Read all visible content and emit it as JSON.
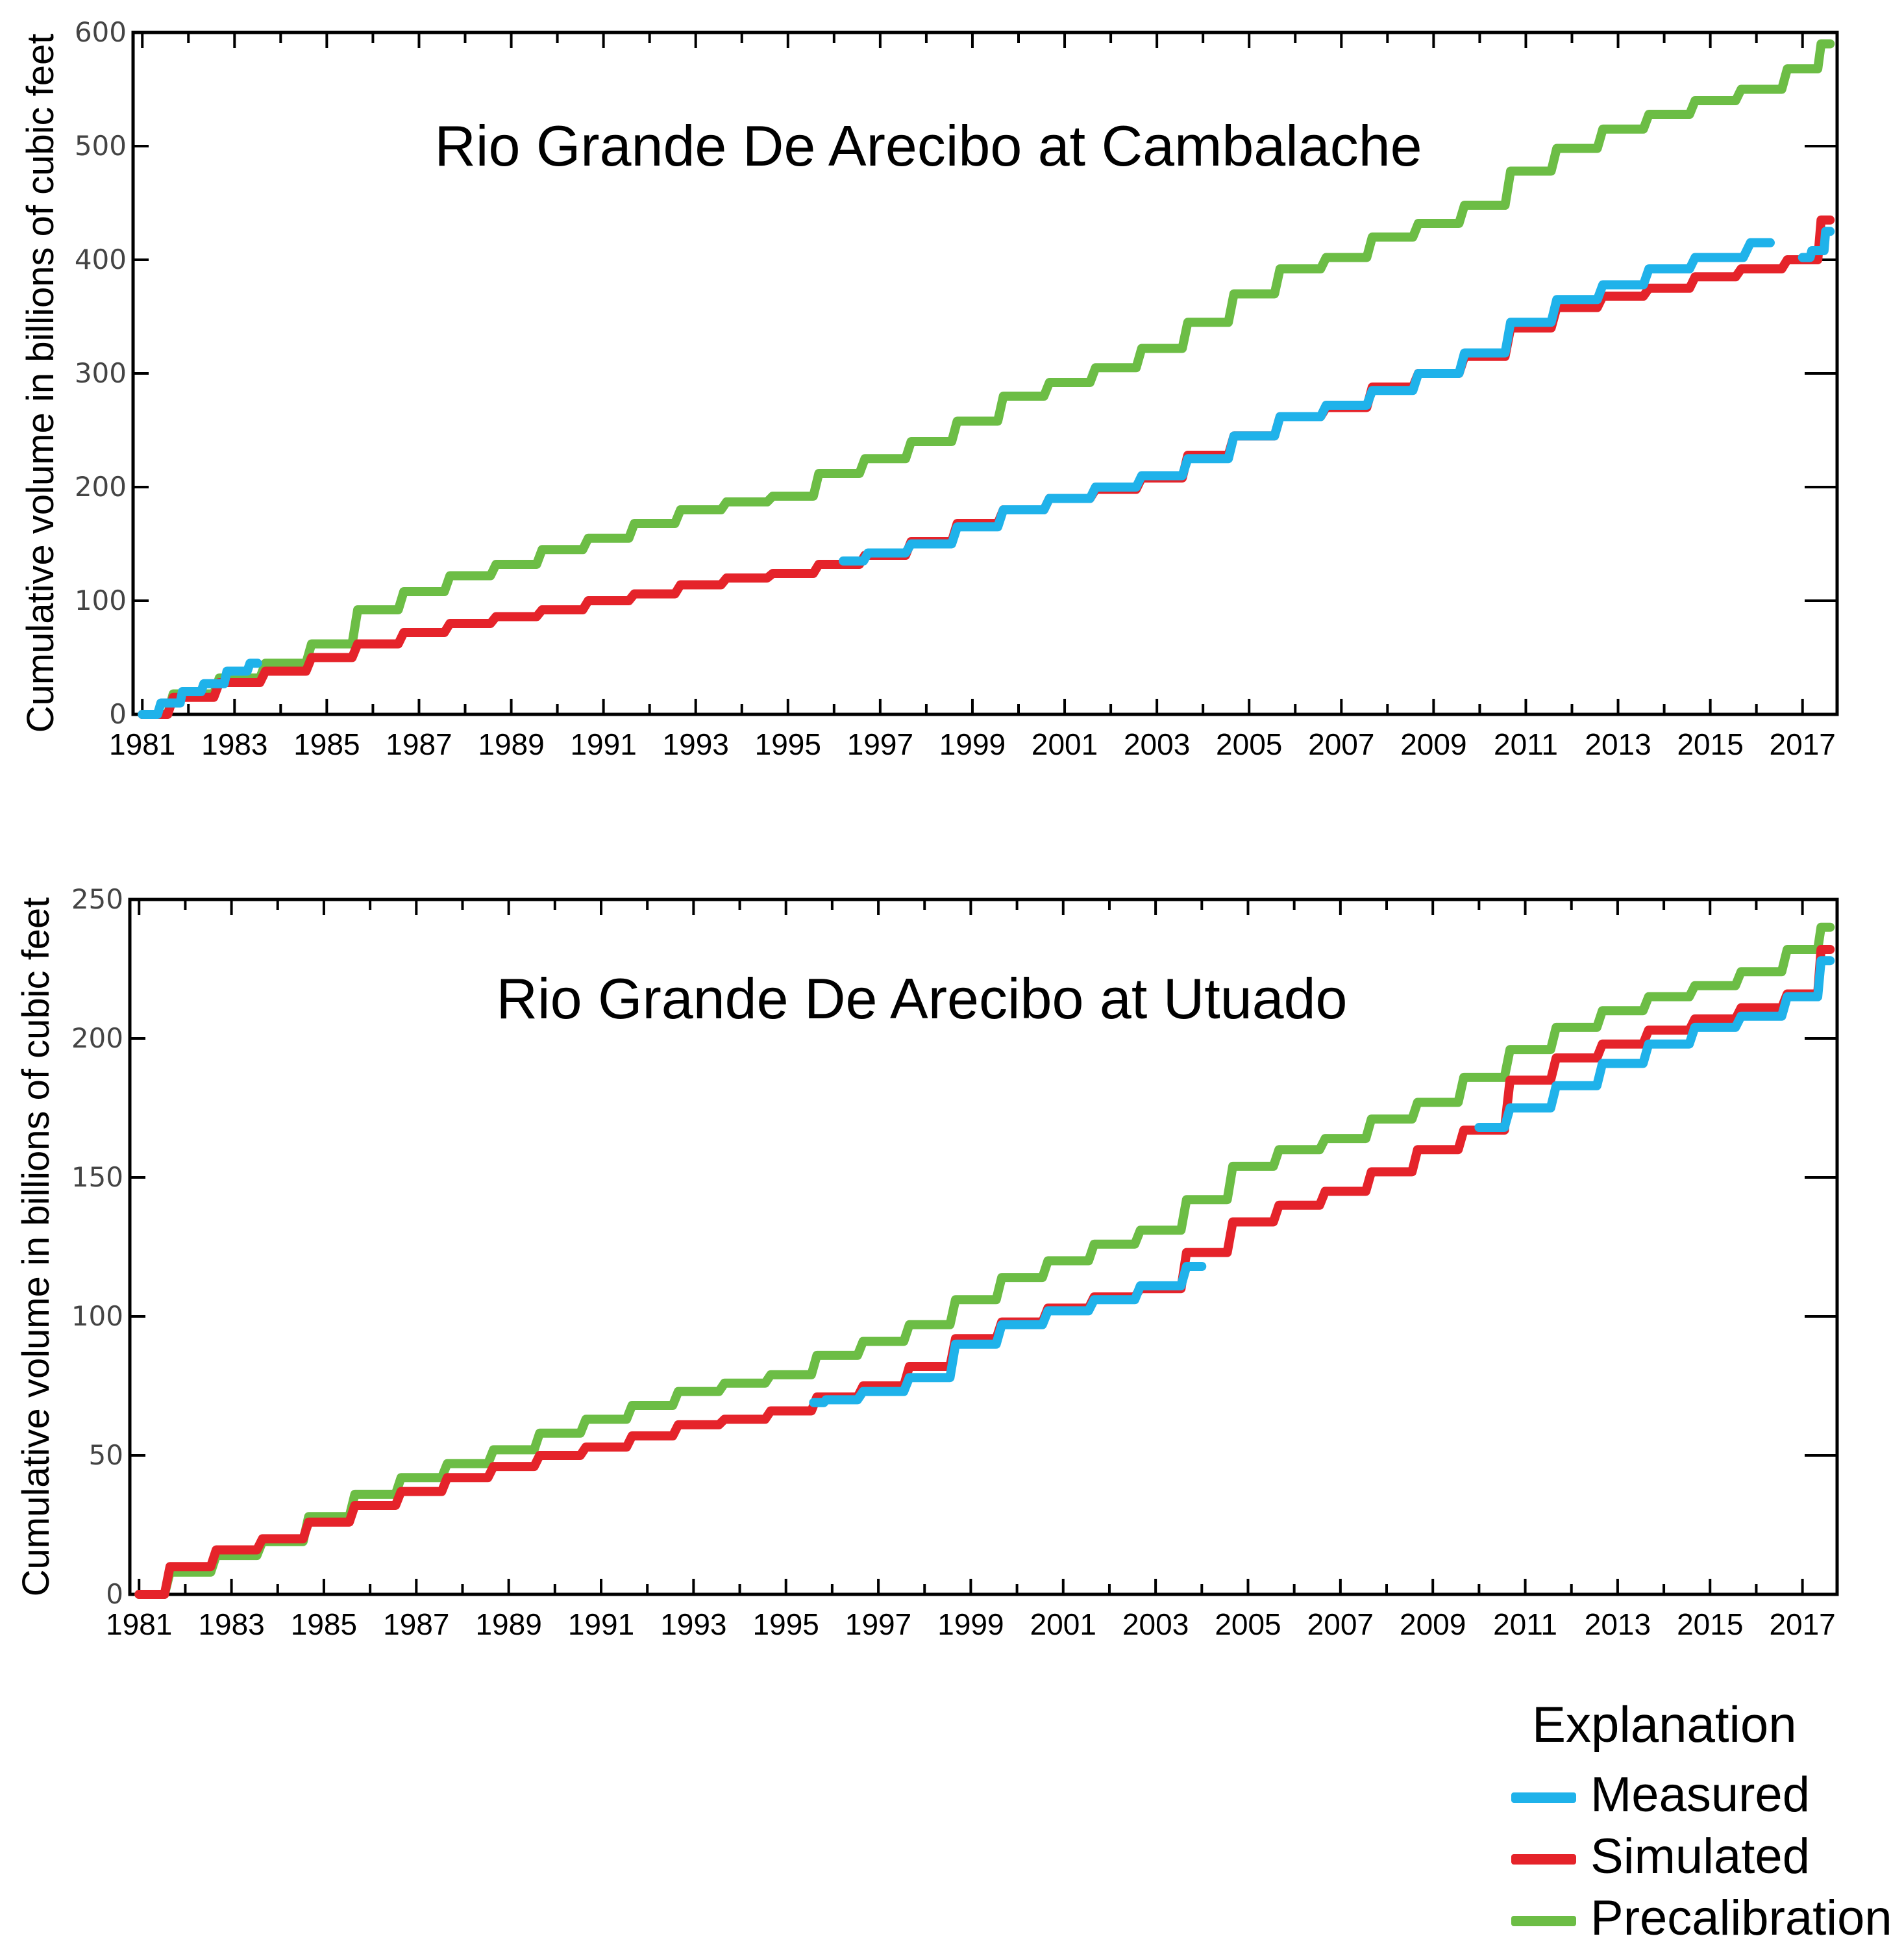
{
  "colors": {
    "measured": "#1fb2ea",
    "simulated": "#e5232a",
    "precalibration": "#6cbd45"
  },
  "legend": {
    "title": "Explanation",
    "items": [
      {
        "label": "Measured",
        "color": "#1fb2ea"
      },
      {
        "label": "Simulated",
        "color": "#e5232a"
      },
      {
        "label": "Precalibration",
        "color": "#6cbd45"
      }
    ]
  },
  "chart_data": [
    {
      "type": "line",
      "title": "Rio Grande De Arecibo at Cambalache",
      "ylabel": "Cumulative volume in billions of cubic feet",
      "xlabel": "",
      "xlim": [
        1980.8,
        2017.75
      ],
      "ylim": [
        0,
        600
      ],
      "xticks": [
        "1981",
        "1983",
        "1985",
        "1987",
        "1989",
        "1991",
        "1993",
        "1995",
        "1997",
        "1999",
        "2001",
        "2003",
        "2005",
        "2007",
        "2009",
        "2011",
        "2013",
        "2015",
        "2017"
      ],
      "yticks": [
        "0",
        "100",
        "200",
        "300",
        "400",
        "500",
        "600"
      ],
      "series": [
        {
          "name": "Precalibration",
          "color": "#6cbd45",
          "points": [
            [
              1981,
              0
            ],
            [
              1982,
              18
            ],
            [
              1983,
              32
            ],
            [
              1984,
              45
            ],
            [
              1985,
              62
            ],
            [
              1986,
              92
            ],
            [
              1987,
              108
            ],
            [
              1988,
              122
            ],
            [
              1989,
              132
            ],
            [
              1990,
              145
            ],
            [
              1991,
              155
            ],
            [
              1992,
              168
            ],
            [
              1993,
              180
            ],
            [
              1994,
              187
            ],
            [
              1995,
              192
            ],
            [
              1996,
              212
            ],
            [
              1997,
              225
            ],
            [
              1998,
              240
            ],
            [
              1999,
              258
            ],
            [
              2000,
              280
            ],
            [
              2001,
              292
            ],
            [
              2002,
              305
            ],
            [
              2003,
              322
            ],
            [
              2004,
              345
            ],
            [
              2005,
              370
            ],
            [
              2006,
              392
            ],
            [
              2007,
              402
            ],
            [
              2008,
              420
            ],
            [
              2009,
              432
            ],
            [
              2010,
              448
            ],
            [
              2011,
              478
            ],
            [
              2012,
              498
            ],
            [
              2013,
              515
            ],
            [
              2014,
              528
            ],
            [
              2015,
              540
            ],
            [
              2016,
              550
            ],
            [
              2017,
              568
            ],
            [
              2017.6,
              590
            ]
          ]
        },
        {
          "name": "Simulated",
          "color": "#e5232a",
          "points": [
            [
              1981,
              0
            ],
            [
              1982,
              15
            ],
            [
              1983,
              28
            ],
            [
              1984,
              38
            ],
            [
              1985,
              50
            ],
            [
              1986,
              62
            ],
            [
              1987,
              72
            ],
            [
              1988,
              80
            ],
            [
              1989,
              86
            ],
            [
              1990,
              92
            ],
            [
              1991,
              100
            ],
            [
              1992,
              106
            ],
            [
              1993,
              114
            ],
            [
              1994,
              120
            ],
            [
              1995,
              124
            ],
            [
              1996,
              132
            ],
            [
              1997,
              140
            ],
            [
              1998,
              152
            ],
            [
              1999,
              168
            ],
            [
              2000,
              180
            ],
            [
              2001,
              190
            ],
            [
              2002,
              198
            ],
            [
              2003,
              208
            ],
            [
              2004,
              228
            ],
            [
              2005,
              245
            ],
            [
              2006,
              262
            ],
            [
              2007,
              270
            ],
            [
              2008,
              288
            ],
            [
              2009,
              300
            ],
            [
              2010,
              315
            ],
            [
              2011,
              340
            ],
            [
              2012,
              358
            ],
            [
              2013,
              368
            ],
            [
              2014,
              375
            ],
            [
              2015,
              385
            ],
            [
              2016,
              392
            ],
            [
              2017,
              400
            ],
            [
              2017.6,
              435
            ]
          ]
        },
        {
          "name": "Measured",
          "color": "#1fb2ea",
          "segments": [
            [
              [
                1981,
                0
              ],
              [
                1981.6,
                10
              ],
              [
                1982,
                20
              ],
              [
                1982.5,
                27
              ],
              [
                1983,
                38
              ],
              [
                1983.5,
                45
              ]
            ],
            [
              [
                1996.2,
                135
              ],
              [
                1997,
                142
              ],
              [
                1998,
                150
              ],
              [
                1999,
                165
              ],
              [
                2000,
                180
              ],
              [
                2001,
                190
              ],
              [
                2002,
                200
              ],
              [
                2003,
                210
              ],
              [
                2004,
                225
              ],
              [
                2005,
                245
              ],
              [
                2006,
                262
              ],
              [
                2007,
                272
              ],
              [
                2008,
                285
              ],
              [
                2009,
                300
              ],
              [
                2010,
                318
              ],
              [
                2011,
                345
              ],
              [
                2012,
                365
              ],
              [
                2013,
                378
              ],
              [
                2014,
                392
              ],
              [
                2015,
                402
              ],
              [
                2016.3,
                415
              ]
            ],
            [
              [
                2017,
                402
              ],
              [
                2017.3,
                408
              ],
              [
                2017.6,
                425
              ]
            ]
          ]
        }
      ]
    },
    {
      "type": "line",
      "title": "Rio Grande De Arecibo at Utuado",
      "ylabel": "Cumulative volume in billions of cubic feet",
      "xlabel": "",
      "xlim": [
        1980.8,
        2017.75
      ],
      "ylim": [
        0,
        250
      ],
      "xticks": [
        "1981",
        "1983",
        "1985",
        "1987",
        "1989",
        "1991",
        "1993",
        "1995",
        "1997",
        "1999",
        "2001",
        "2003",
        "2005",
        "2007",
        "2009",
        "2011",
        "2013",
        "2015",
        "2017"
      ],
      "yticks": [
        "0",
        "50",
        "100",
        "150",
        "200",
        "250"
      ],
      "series": [
        {
          "name": "Precalibration",
          "color": "#6cbd45",
          "points": [
            [
              1981,
              0
            ],
            [
              1982,
              8
            ],
            [
              1983,
              14
            ],
            [
              1984,
              19
            ],
            [
              1985,
              28
            ],
            [
              1986,
              36
            ],
            [
              1987,
              42
            ],
            [
              1988,
              47
            ],
            [
              1989,
              52
            ],
            [
              1990,
              58
            ],
            [
              1991,
              63
            ],
            [
              1992,
              68
            ],
            [
              1993,
              73
            ],
            [
              1994,
              76
            ],
            [
              1995,
              79
            ],
            [
              1996,
              86
            ],
            [
              1997,
              91
            ],
            [
              1998,
              97
            ],
            [
              1999,
              106
            ],
            [
              2000,
              114
            ],
            [
              2001,
              120
            ],
            [
              2002,
              126
            ],
            [
              2003,
              131
            ],
            [
              2004,
              142
            ],
            [
              2005,
              154
            ],
            [
              2006,
              160
            ],
            [
              2007,
              164
            ],
            [
              2008,
              171
            ],
            [
              2009,
              177
            ],
            [
              2010,
              186
            ],
            [
              2011,
              196
            ],
            [
              2012,
              204
            ],
            [
              2013,
              210
            ],
            [
              2014,
              215
            ],
            [
              2015,
              219
            ],
            [
              2016,
              224
            ],
            [
              2017,
              232
            ],
            [
              2017.6,
              240
            ]
          ]
        },
        {
          "name": "Simulated",
          "color": "#e5232a",
          "points": [
            [
              1981,
              0
            ],
            [
              1982,
              10
            ],
            [
              1983,
              16
            ],
            [
              1984,
              20
            ],
            [
              1985,
              26
            ],
            [
              1986,
              32
            ],
            [
              1987,
              37
            ],
            [
              1988,
              42
            ],
            [
              1989,
              46
            ],
            [
              1990,
              50
            ],
            [
              1991,
              53
            ],
            [
              1992,
              57
            ],
            [
              1993,
              61
            ],
            [
              1994,
              63
            ],
            [
              1995,
              66
            ],
            [
              1996,
              71
            ],
            [
              1997,
              75
            ],
            [
              1998,
              82
            ],
            [
              1999,
              92
            ],
            [
              2000,
              98
            ],
            [
              2001,
              103
            ],
            [
              2002,
              107
            ],
            [
              2003,
              110
            ],
            [
              2004,
              123
            ],
            [
              2005,
              134
            ],
            [
              2006,
              140
            ],
            [
              2007,
              145
            ],
            [
              2008,
              152
            ],
            [
              2009,
              160
            ],
            [
              2010,
              167
            ],
            [
              2011,
              185
            ],
            [
              2012,
              193
            ],
            [
              2013,
              198
            ],
            [
              2014,
              203
            ],
            [
              2015,
              207
            ],
            [
              2016,
              211
            ],
            [
              2017,
              216
            ],
            [
              2017.6,
              232
            ]
          ]
        },
        {
          "name": "Measured",
          "color": "#1fb2ea",
          "segments": [
            [
              [
                1995.6,
                69
              ],
              [
                1996,
                70
              ],
              [
                1997,
                73
              ],
              [
                1998,
                78
              ],
              [
                1999,
                90
              ],
              [
                2000,
                97
              ],
              [
                2001,
                102
              ],
              [
                2002,
                106
              ],
              [
                2003,
                111
              ],
              [
                2004,
                118
              ]
            ],
            [
              [
                2010,
                168
              ],
              [
                2011,
                175
              ],
              [
                2012,
                183
              ],
              [
                2013,
                191
              ],
              [
                2014,
                198
              ],
              [
                2015,
                204
              ],
              [
                2016,
                208
              ],
              [
                2017,
                215
              ],
              [
                2017.6,
                228
              ]
            ]
          ]
        }
      ]
    }
  ]
}
